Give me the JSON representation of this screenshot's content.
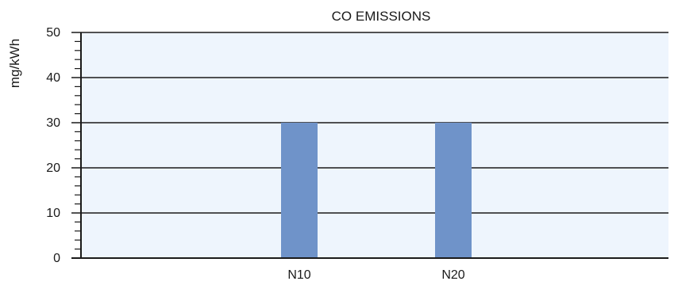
{
  "chart_data": {
    "type": "bar",
    "title": "CO EMISSIONS",
    "ylabel": "mg/kWh",
    "xlabel": "",
    "categories": [
      "N10",
      "N20"
    ],
    "values": [
      30,
      30
    ],
    "ylim": [
      0,
      50
    ],
    "yticks": [
      0,
      10,
      20,
      30,
      40,
      50
    ],
    "ytick_labels": [
      "0",
      "10",
      "20",
      "30",
      "40",
      "50"
    ],
    "grid": true,
    "legend": "none",
    "colors": {
      "bar": "#6f93c9",
      "plot_background": "#eef5fd",
      "grid": "#1a1a1a",
      "axis": "#1a1a1a"
    }
  }
}
